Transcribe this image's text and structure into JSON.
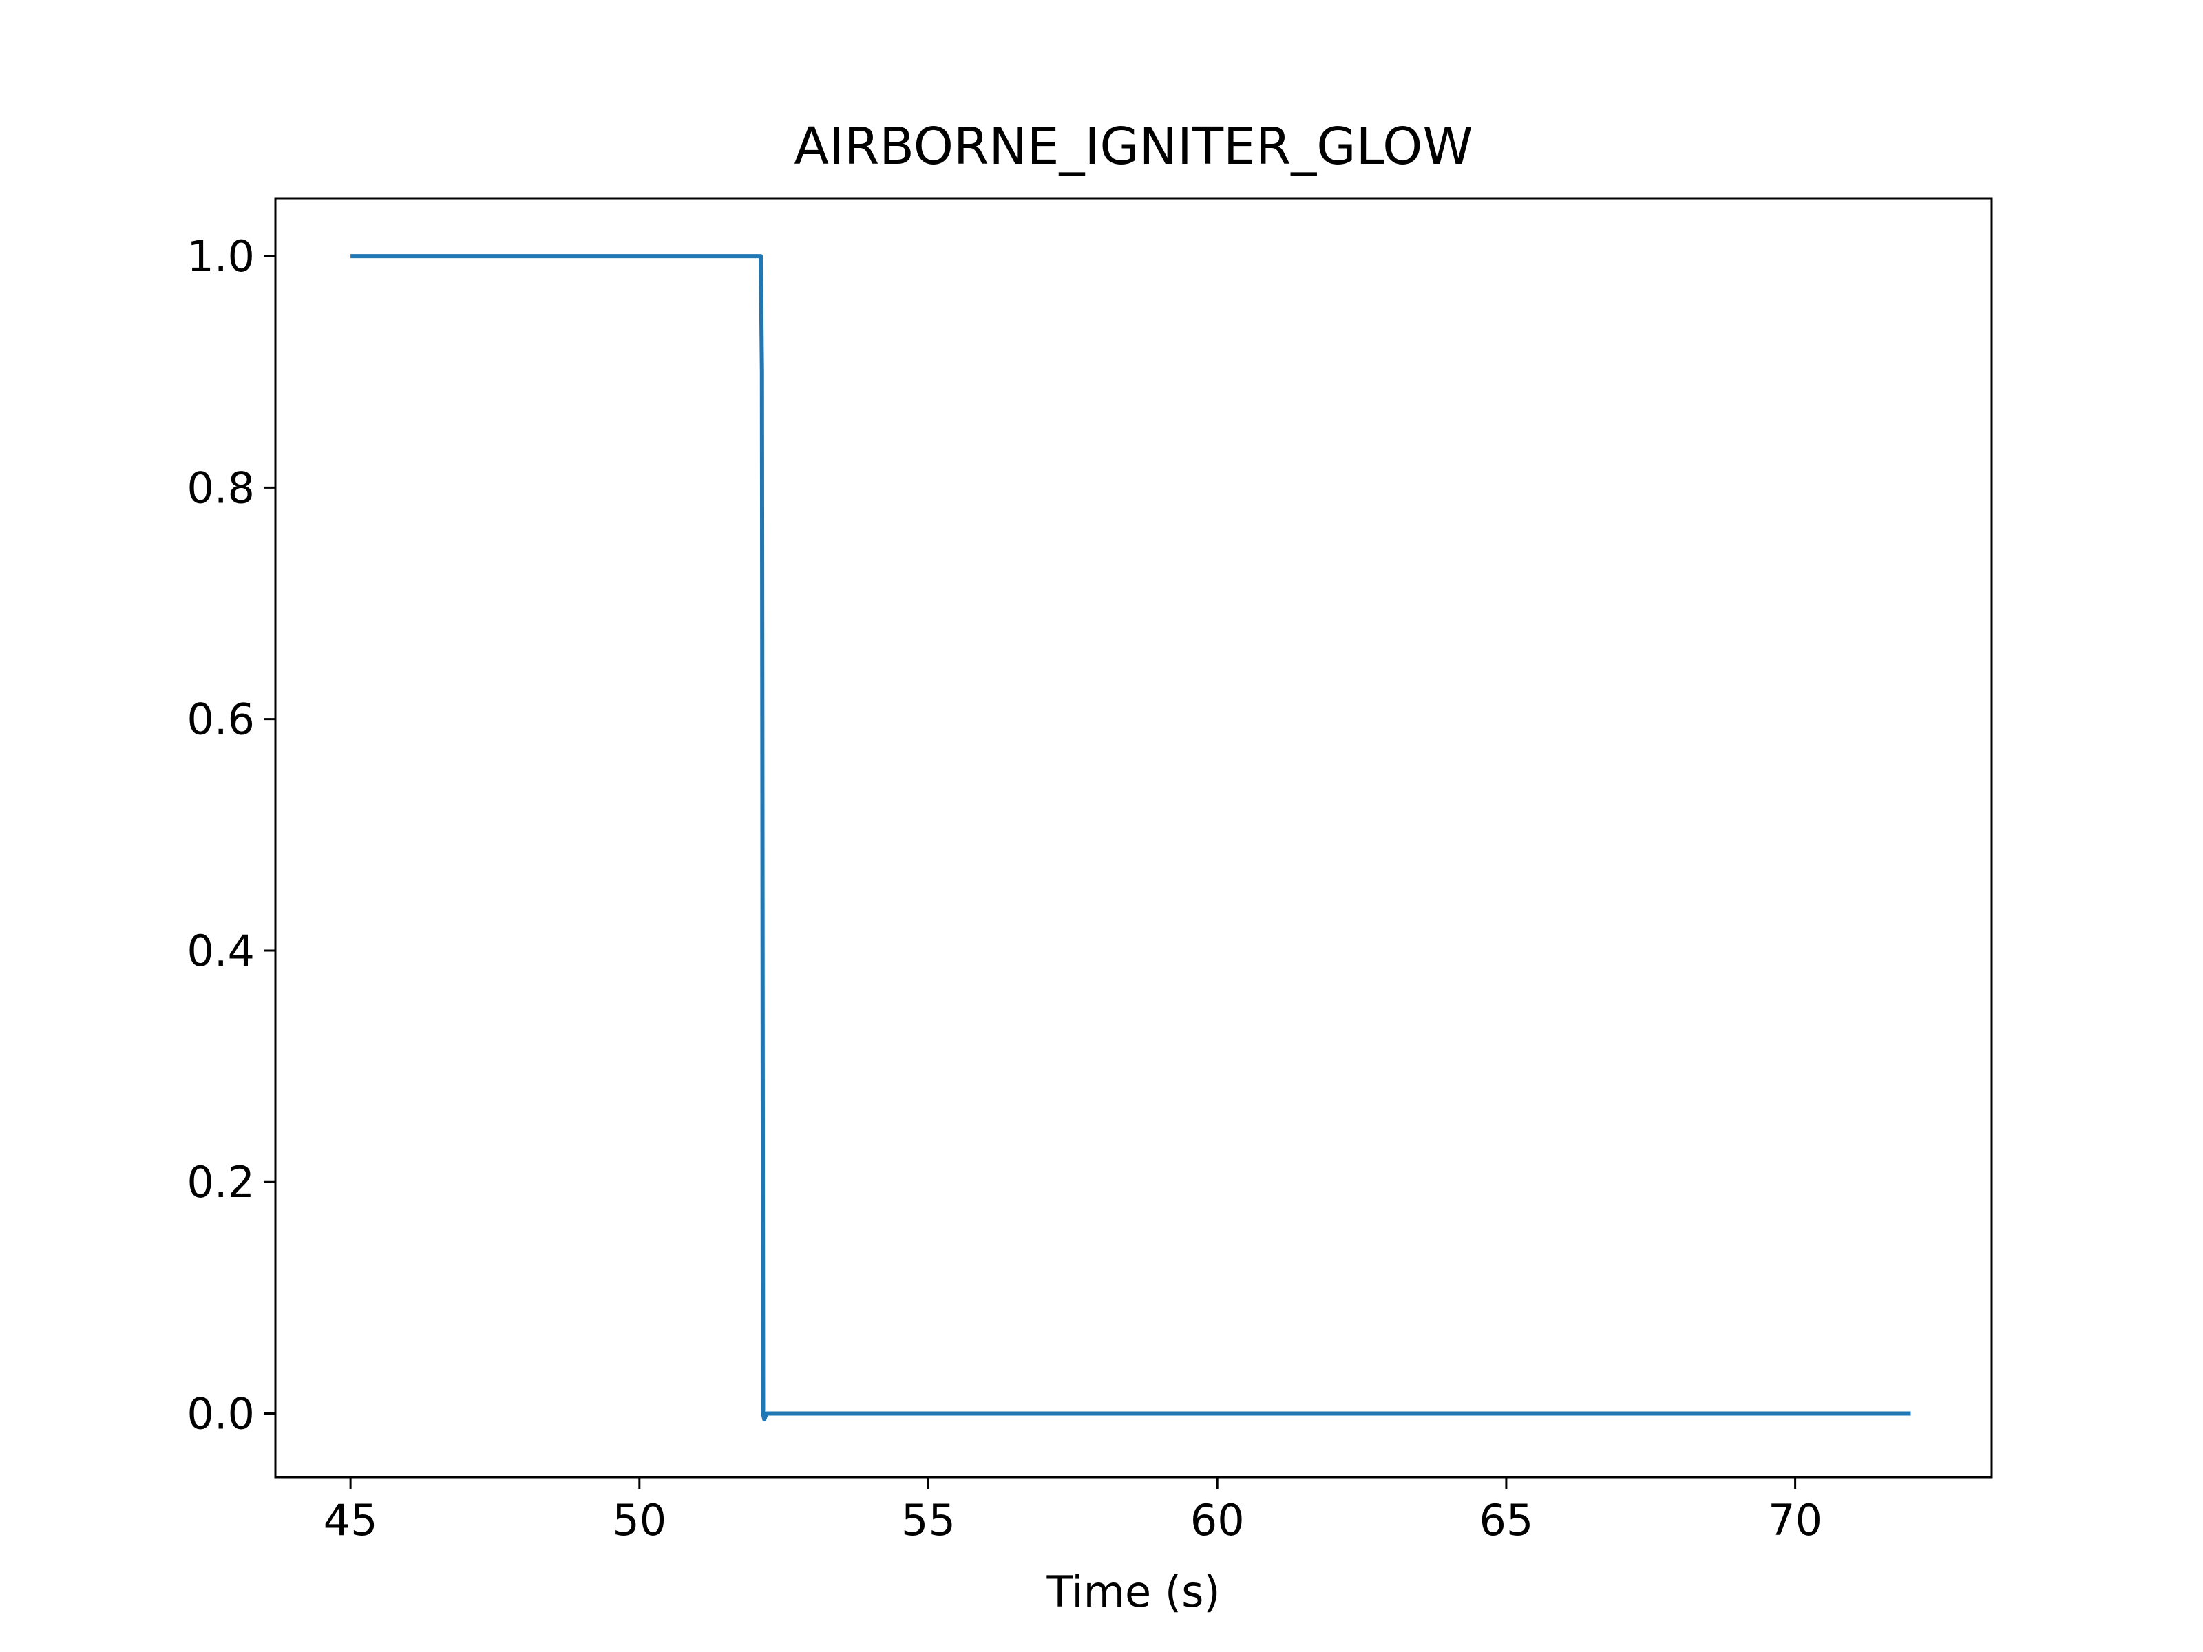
{
  "chart_data": {
    "type": "line",
    "title": "AIRBORNE_IGNITER_GLOW",
    "xlabel": "Time (s)",
    "ylabel": "",
    "xlim": [
      43.7,
      73.4
    ],
    "ylim": [
      -0.055,
      1.05
    ],
    "xticks": [
      45,
      50,
      55,
      60,
      65,
      70
    ],
    "xtick_labels": [
      "45",
      "50",
      "55",
      "60",
      "65",
      "70"
    ],
    "yticks": [
      0.0,
      0.2,
      0.4,
      0.6,
      0.8,
      1.0
    ],
    "ytick_labels": [
      "0.0",
      "0.2",
      "0.4",
      "0.6",
      "0.8",
      "1.0"
    ],
    "grid": false,
    "legend": "none",
    "series": [
      {
        "color": "#1f77b4",
        "x": [
          45.0,
          52.1,
          52.12,
          52.14,
          52.16,
          52.2,
          72.0
        ],
        "y": [
          1.0,
          1.0,
          0.9,
          0.0,
          -0.005,
          0.0,
          0.0
        ]
      }
    ]
  }
}
